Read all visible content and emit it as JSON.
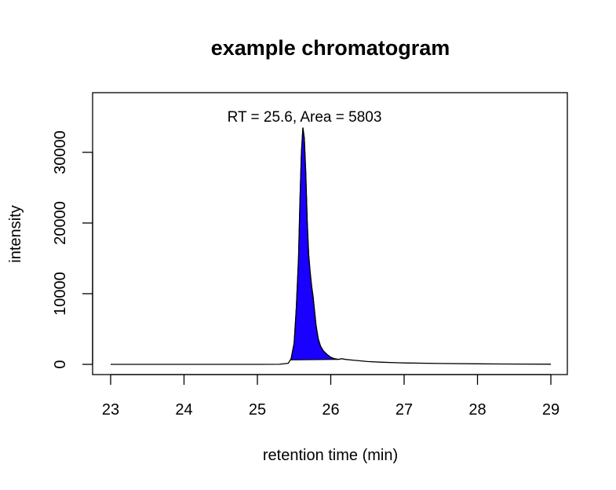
{
  "chart_data": {
    "type": "line",
    "title": "example chromatogram",
    "xlabel": "retention time (min)",
    "ylabel": "intensity",
    "xlim": [
      23,
      29
    ],
    "ylim": [
      0,
      35000
    ],
    "x_ticks": [
      23,
      24,
      25,
      26,
      27,
      28,
      29
    ],
    "y_ticks": [
      0,
      10000,
      20000,
      30000
    ],
    "grid": false,
    "legend": "none",
    "annotation": {
      "text": "RT = 25.6, Area = 5803",
      "rt": 25.6,
      "area": 5803
    },
    "peak_fill_color": "#1a00ff",
    "peak_range": [
      25.45,
      26.1
    ],
    "series": [
      {
        "x": [
          23.0,
          23.5,
          24.0,
          24.5,
          25.0,
          25.3,
          25.42,
          25.46,
          25.5,
          25.53,
          25.56,
          25.58,
          25.6,
          25.62,
          25.64,
          25.66,
          25.68,
          25.7,
          25.72,
          25.74,
          25.76,
          25.78,
          25.8,
          25.83,
          25.86,
          25.9,
          25.95,
          26.0,
          26.05,
          26.1,
          26.15,
          26.2,
          26.3,
          26.4,
          26.5,
          26.7,
          27.0,
          27.5,
          28.0,
          28.5,
          29.0
        ],
        "y": [
          0,
          0,
          0,
          0,
          0,
          10,
          150,
          800,
          3000,
          8000,
          15000,
          23000,
          30000,
          33500,
          32000,
          27000,
          20000,
          15500,
          13000,
          11000,
          9500,
          7500,
          5500,
          3600,
          2600,
          1900,
          1400,
          1000,
          800,
          700,
          800,
          700,
          600,
          500,
          400,
          300,
          200,
          120,
          80,
          40,
          20
        ]
      }
    ]
  }
}
